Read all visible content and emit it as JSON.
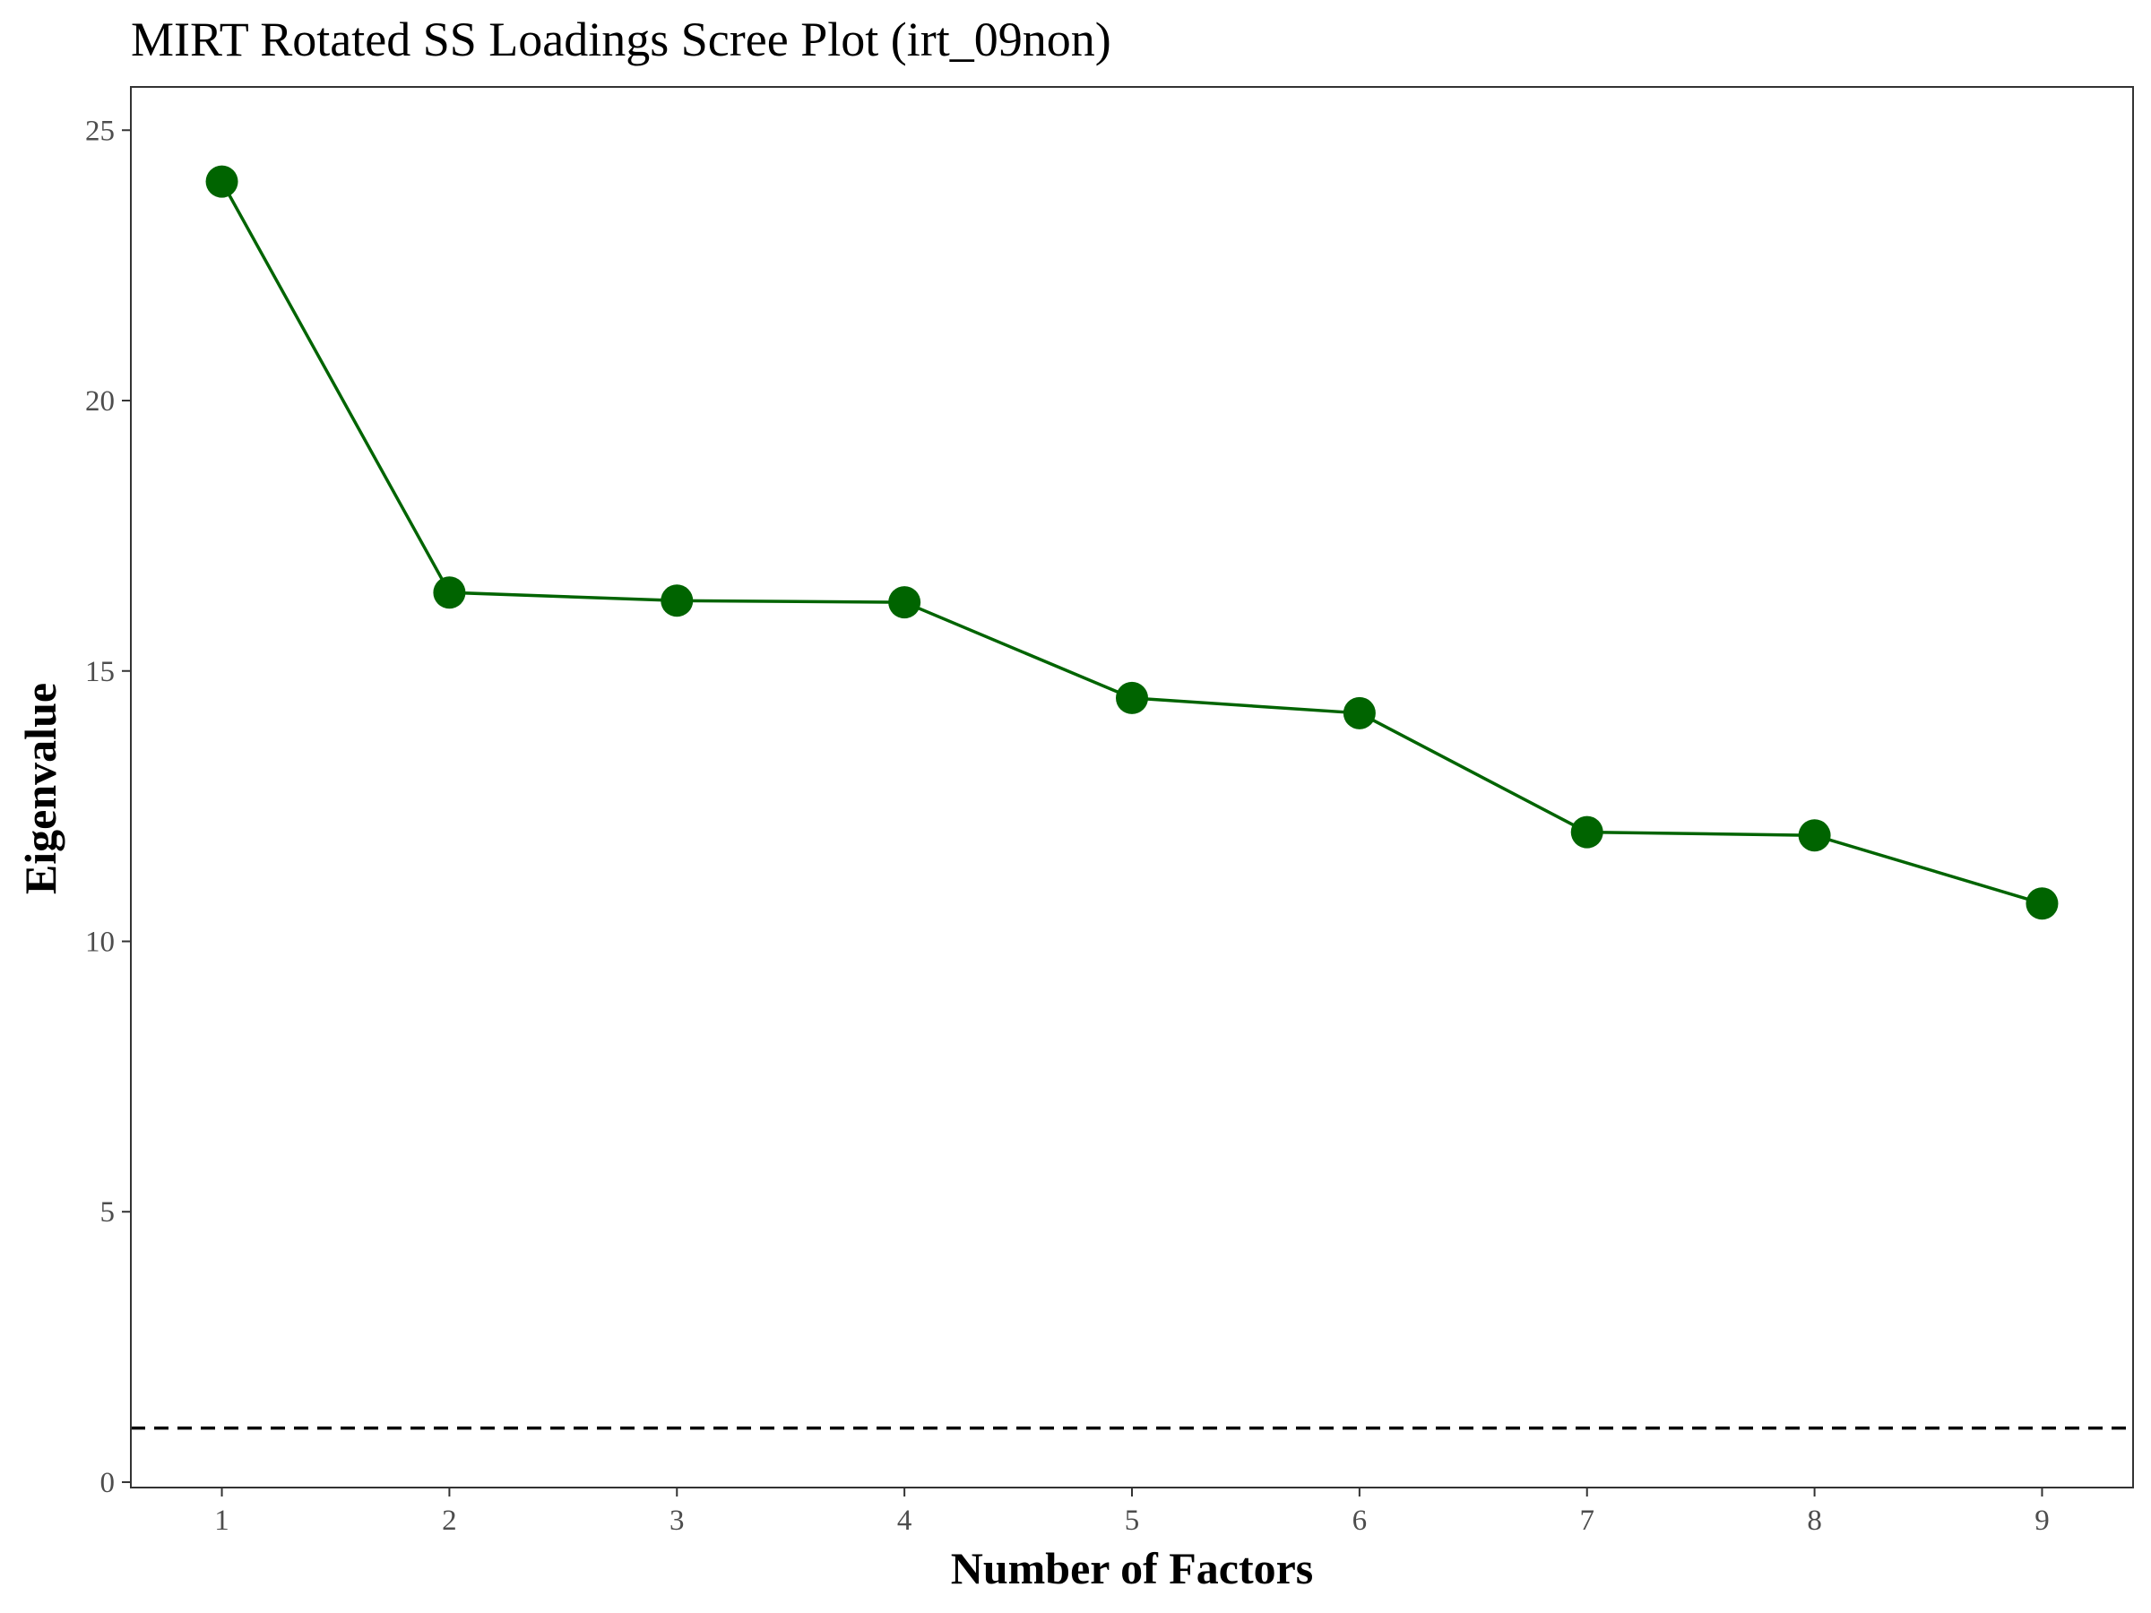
{
  "chart_data": {
    "type": "line",
    "title": "MIRT Rotated SS Loadings Scree Plot (irt_09non)",
    "xlabel": "Number of Factors",
    "ylabel": "Eigenvalue",
    "x": [
      1,
      2,
      3,
      4,
      5,
      6,
      7,
      8,
      9
    ],
    "x_tick_labels": [
      "1",
      "2",
      "3",
      "4",
      "5",
      "6",
      "7",
      "8",
      "9"
    ],
    "y_ticks": [
      0,
      5,
      10,
      15,
      20,
      25
    ],
    "y_tick_labels": [
      "0",
      "5",
      "10",
      "15",
      "20",
      "25"
    ],
    "xlim": [
      0.6,
      9.4
    ],
    "ylim": [
      -0.1,
      25.8
    ],
    "series": [
      {
        "values": [
          24.05,
          16.45,
          16.3,
          16.27,
          14.5,
          14.22,
          12.02,
          11.96,
          10.7
        ],
        "color": "#006400"
      }
    ],
    "reference_line": {
      "y": 1,
      "style": "dashed",
      "color": "#000000"
    },
    "grid": false,
    "legend": "none"
  }
}
